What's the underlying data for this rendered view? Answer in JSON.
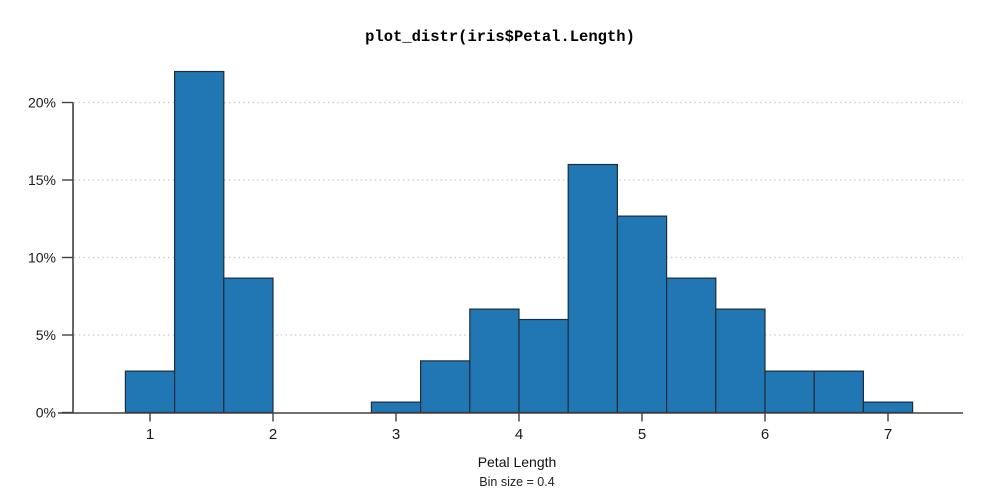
{
  "title": "plot_distr(iris$Petal.Length)",
  "colors": {
    "background": "#ffffff",
    "bar_fill": "#2077b4",
    "bar_stroke": "#1e2d3d",
    "axis": "#404040",
    "grid": "#c9c9c9",
    "text": "#1a1a1a"
  },
  "chart_data": {
    "type": "bar",
    "subtype": "histogram",
    "title": "plot_distr(iris$Petal.Length)",
    "xlabel": "Petal Length",
    "bin_note": "Bin size = 0.4",
    "bin_size": 0.4,
    "bin_edges": [
      0.8,
      1.2,
      1.6,
      2.0,
      2.4,
      2.8,
      3.2,
      3.6,
      4.0,
      4.4,
      4.8,
      5.2,
      5.6,
      6.0,
      6.4,
      6.8,
      7.2
    ],
    "values_percent": [
      2.67,
      22.0,
      8.67,
      0,
      0,
      0.67,
      3.33,
      6.67,
      6.0,
      16.0,
      12.67,
      8.67,
      6.67,
      2.67,
      2.67,
      0.67
    ],
    "x_ticks": [
      1,
      2,
      3,
      4,
      5,
      6,
      7
    ],
    "y_ticks": [
      0,
      5,
      10,
      15,
      20
    ],
    "y_tick_labels": [
      "0%",
      "5%",
      "10%",
      "15%",
      "20%"
    ],
    "xlim": [
      0.25,
      7.6
    ],
    "ylim": [
      0,
      22.5
    ],
    "grid": "dotted horizontal gridlines at y ticks",
    "legend": "none"
  }
}
